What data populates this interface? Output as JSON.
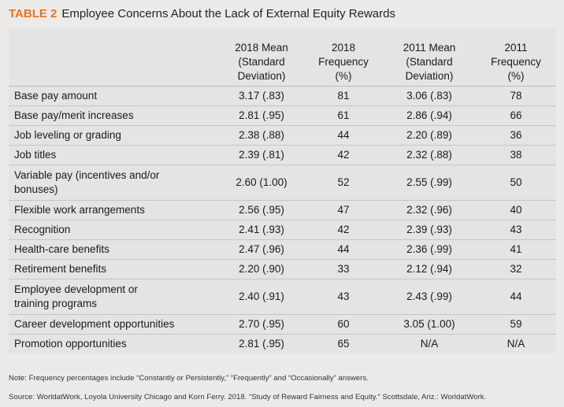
{
  "title": {
    "number": "TABLE 2",
    "text": "Employee Concerns About the Lack of External Equity Rewards"
  },
  "headers": [
    "",
    "2018 Mean (Standard Deviation)",
    "2018 Frequency (%)",
    "2011 Mean (Standard Deviation)",
    "2011 Frequency (%)"
  ],
  "rows": [
    [
      "Base pay amount",
      "3.17 (.83)",
      "81",
      "3.06 (.83)",
      "78"
    ],
    [
      "Base pay/merit increases",
      "2.81 (.95)",
      "61",
      "2.86 (.94)",
      "66"
    ],
    [
      "Job leveling or grading",
      "2.38 (.88)",
      "44",
      "2.20 (.89)",
      "36"
    ],
    [
      "Job titles",
      "2.39 (.81)",
      "42",
      "2.32 (.88)",
      "38"
    ],
    [
      "Variable pay (incentives and/or bonuses)",
      "2.60 (1.00)",
      "52",
      "2.55 (.99)",
      "50"
    ],
    [
      "Flexible work arrangements",
      "2.56 (.95)",
      "47",
      "2.32 (.96)",
      "40"
    ],
    [
      "Recognition",
      "2.41 (.93)",
      "42",
      "2.39 (.93)",
      "43"
    ],
    [
      "Health-care benefits",
      "2.47 (.96)",
      "44",
      "2.36 (.99)",
      "41"
    ],
    [
      "Retirement benefits",
      "2.20 (.90)",
      "33",
      "2.12 (.94)",
      "32"
    ],
    [
      "Employee development or training programs",
      "2.40 (.91)",
      "43",
      "2.43 (.99)",
      "44"
    ],
    [
      "Career development opportunities",
      "2.70 (.95)",
      "60",
      "3.05 (1.00)",
      "59"
    ],
    [
      "Promotion opportunities",
      "2.81 (.95)",
      "65",
      "N/A",
      "N/A"
    ]
  ],
  "notes": {
    "note": "Note: Frequency percentages include “Constantly or Persistently,” “Frequently” and “Occasionally” answers.",
    "source": "Source: WorldatWork, Loyola University Chicago and Korn Ferry. 2018. “Study of Reward Fairness and Equity.” Scottsdale, Ariz.: WorldatWork."
  },
  "colors": {
    "accent": "#e8731e",
    "page_bg": "#ecebea",
    "table_bg": "#e3e4e5"
  }
}
